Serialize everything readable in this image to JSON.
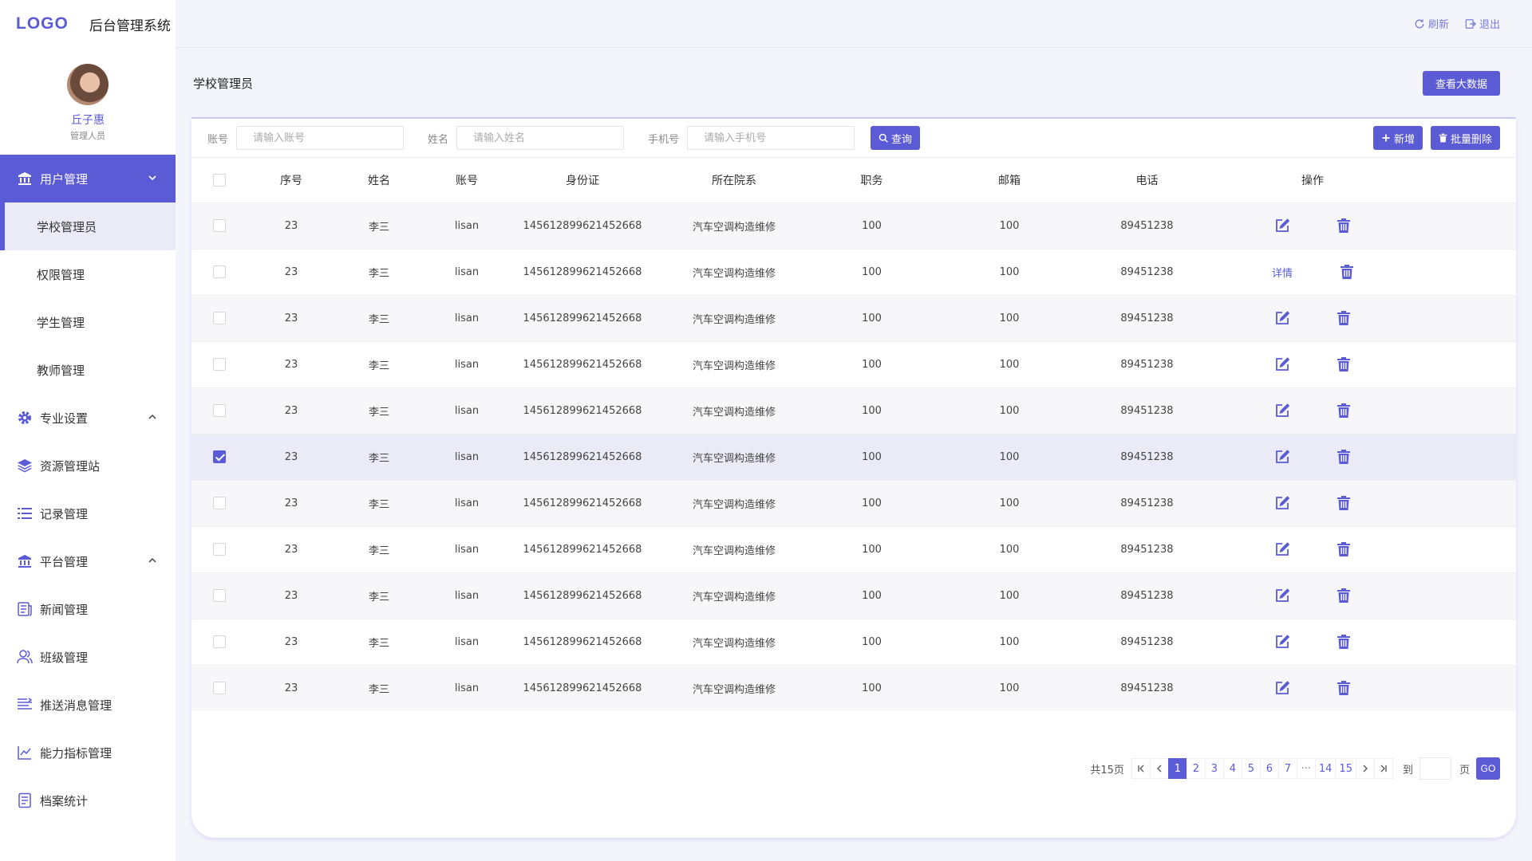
{
  "brand": {
    "logo": "LOGO",
    "title": "后台管理系统"
  },
  "profile": {
    "name": "丘子惠",
    "role": "管理人员"
  },
  "menu": [
    {
      "label": "用户管理",
      "icon": "bank-icon",
      "active": true,
      "chevron": "down"
    },
    {
      "label": "学校管理员",
      "sub": true,
      "selected": true
    },
    {
      "label": "权限管理",
      "sub": true
    },
    {
      "label": "学生管理",
      "sub": true
    },
    {
      "label": "教师管理",
      "sub": true
    },
    {
      "label": "专业设置",
      "icon": "gear-icon",
      "chevron": "up"
    },
    {
      "label": "资源管理站",
      "icon": "layers-icon"
    },
    {
      "label": "记录管理",
      "icon": "list-icon"
    },
    {
      "label": "平台管理",
      "icon": "bank-icon",
      "chevron": "up"
    },
    {
      "label": "新闻管理",
      "icon": "news-icon"
    },
    {
      "label": "班级管理",
      "icon": "users-icon"
    },
    {
      "label": "推送消息管理",
      "icon": "message-lines-icon"
    },
    {
      "label": "能力指标管理",
      "icon": "trend-chart-icon"
    },
    {
      "label": "档案统计",
      "icon": "document-icon"
    }
  ],
  "topbar": {
    "refresh": "刷新",
    "logout": "退出"
  },
  "page": {
    "title": "学校管理员",
    "bigdata_button": "查看大数据"
  },
  "filters": {
    "account_label": "账号",
    "account_placeholder": "请输入账号",
    "name_label": "姓名",
    "name_placeholder": "请输入姓名",
    "phone_label": "手机号",
    "phone_placeholder": "请输入手机号",
    "search_button": "查询",
    "add_button": "新增",
    "batch_delete_button": "批量删除"
  },
  "table": {
    "columns": [
      "序号",
      "姓名",
      "账号",
      "身份证",
      "所在院系",
      "职务",
      "邮箱",
      "电话",
      "操作"
    ],
    "rows": [
      {
        "no": "23",
        "name": "李三",
        "account": "lisan",
        "id_card": "145612899621452668",
        "dept": "汽车空调构造维修",
        "position": "100",
        "email": "100",
        "phone": "89451238",
        "checked": false,
        "op": "edit"
      },
      {
        "no": "23",
        "name": "李三",
        "account": "lisan",
        "id_card": "145612899621452668",
        "dept": "汽车空调构造维修",
        "position": "100",
        "email": "100",
        "phone": "89451238",
        "checked": false,
        "op": "detail",
        "op_label": "详情"
      },
      {
        "no": "23",
        "name": "李三",
        "account": "lisan",
        "id_card": "145612899621452668",
        "dept": "汽车空调构造维修",
        "position": "100",
        "email": "100",
        "phone": "89451238",
        "checked": false,
        "op": "edit"
      },
      {
        "no": "23",
        "name": "李三",
        "account": "lisan",
        "id_card": "145612899621452668",
        "dept": "汽车空调构造维修",
        "position": "100",
        "email": "100",
        "phone": "89451238",
        "checked": false,
        "op": "edit"
      },
      {
        "no": "23",
        "name": "李三",
        "account": "lisan",
        "id_card": "145612899621452668",
        "dept": "汽车空调构造维修",
        "position": "100",
        "email": "100",
        "phone": "89451238",
        "checked": false,
        "op": "edit"
      },
      {
        "no": "23",
        "name": "李三",
        "account": "lisan",
        "id_card": "145612899621452668",
        "dept": "汽车空调构造维修",
        "position": "100",
        "email": "100",
        "phone": "89451238",
        "checked": true,
        "op": "edit"
      },
      {
        "no": "23",
        "name": "李三",
        "account": "lisan",
        "id_card": "145612899621452668",
        "dept": "汽车空调构造维修",
        "position": "100",
        "email": "100",
        "phone": "89451238",
        "checked": false,
        "op": "edit"
      },
      {
        "no": "23",
        "name": "李三",
        "account": "lisan",
        "id_card": "145612899621452668",
        "dept": "汽车空调构造维修",
        "position": "100",
        "email": "100",
        "phone": "89451238",
        "checked": false,
        "op": "edit"
      },
      {
        "no": "23",
        "name": "李三",
        "account": "lisan",
        "id_card": "145612899621452668",
        "dept": "汽车空调构造维修",
        "position": "100",
        "email": "100",
        "phone": "89451238",
        "checked": false,
        "op": "edit"
      },
      {
        "no": "23",
        "name": "李三",
        "account": "lisan",
        "id_card": "145612899621452668",
        "dept": "汽车空调构造维修",
        "position": "100",
        "email": "100",
        "phone": "89451238",
        "checked": false,
        "op": "edit"
      },
      {
        "no": "23",
        "name": "李三",
        "account": "lisan",
        "id_card": "145612899621452668",
        "dept": "汽车空调构造维修",
        "position": "100",
        "email": "100",
        "phone": "89451238",
        "checked": false,
        "op": "edit"
      }
    ]
  },
  "pagination": {
    "total": "共15页",
    "pages": [
      "1",
      "2",
      "3",
      "4",
      "5",
      "6",
      "7",
      "···",
      "14",
      "15"
    ],
    "current": "1",
    "goto_label": "到",
    "goto_value": "",
    "page_unit": "页",
    "go_button": "GO"
  },
  "colors": {
    "accent": "#5b5bd6",
    "selected_row": "#ebebf7",
    "background": "#f4f5fb"
  }
}
